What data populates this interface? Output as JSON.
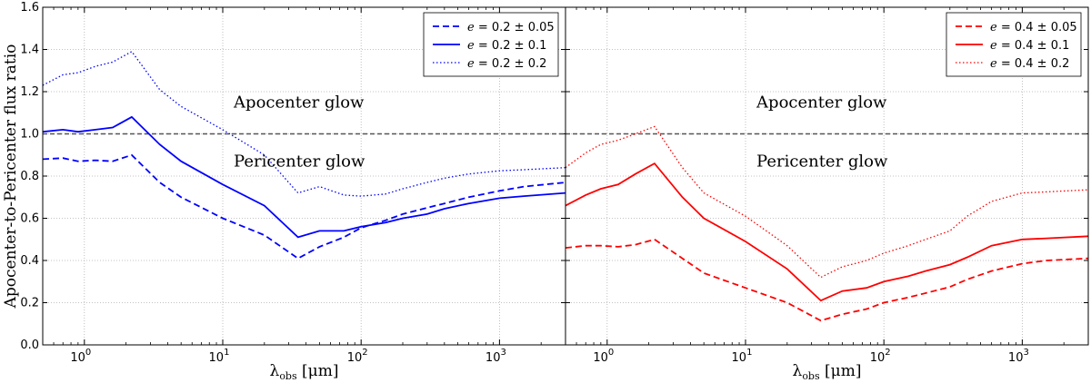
{
  "chart_data": [
    {
      "type": "line",
      "panel": "left",
      "xscale": "log",
      "xlim": [
        0.5,
        3000
      ],
      "ylim": [
        0.0,
        1.6
      ],
      "xlabel": "λobs [μm]",
      "ylabel": "Apocenter-to-Pericenter flux ratio",
      "yticks": [
        "0.0",
        "0.2",
        "0.4",
        "0.6",
        "0.8",
        "1.0",
        "1.2",
        "1.4",
        "1.6"
      ],
      "xticks": [
        {
          "base": "10",
          "exp": "0",
          "value": 1
        },
        {
          "base": "10",
          "exp": "1",
          "value": 10
        },
        {
          "base": "10",
          "exp": "2",
          "value": 100
        },
        {
          "base": "10",
          "exp": "3",
          "value": 1000
        }
      ],
      "grid": true,
      "reference_line": {
        "y": 1.0,
        "style": "dashed",
        "color": "#555555"
      },
      "annotations": [
        {
          "text": "Apocenter glow",
          "x": 12,
          "y": 1.15
        },
        {
          "text": "Pericenter glow",
          "x": 12,
          "y": 0.87
        }
      ],
      "legend_position": "top-right",
      "series": [
        {
          "name": "e = 0.2 ± 0.05",
          "label_italic": "e",
          "label_rest": " = 0.2 ± 0.05",
          "color": "#0000ff",
          "style": "dashed",
          "x": [
            0.5,
            0.7,
            0.9,
            1.2,
            1.6,
            2.2,
            3.5,
            5,
            10,
            20,
            35,
            50,
            75,
            100,
            150,
            200,
            300,
            400,
            600,
            1000,
            1500,
            3000
          ],
          "y": [
            0.88,
            0.885,
            0.87,
            0.875,
            0.87,
            0.9,
            0.77,
            0.7,
            0.6,
            0.52,
            0.41,
            0.465,
            0.51,
            0.555,
            0.59,
            0.62,
            0.65,
            0.67,
            0.7,
            0.73,
            0.75,
            0.77
          ]
        },
        {
          "name": "e = 0.2 ± 0.1",
          "label_italic": "e",
          "label_rest": " = 0.2 ± 0.1",
          "color": "#0000ff",
          "style": "solid",
          "x": [
            0.5,
            0.7,
            0.9,
            1.2,
            1.6,
            2.2,
            3.5,
            5,
            10,
            20,
            35,
            50,
            75,
            100,
            150,
            200,
            300,
            400,
            600,
            1000,
            1500,
            3000
          ],
          "y": [
            1.01,
            1.02,
            1.01,
            1.02,
            1.03,
            1.08,
            0.95,
            0.87,
            0.76,
            0.66,
            0.51,
            0.54,
            0.54,
            0.56,
            0.58,
            0.6,
            0.62,
            0.645,
            0.67,
            0.695,
            0.705,
            0.72
          ]
        },
        {
          "name": "e = 0.2 ± 0.2",
          "label_italic": "e",
          "label_rest": " = 0.2 ± 0.2",
          "color": "#0000ff",
          "style": "dotted",
          "x": [
            0.5,
            0.7,
            0.9,
            1.2,
            1.6,
            2.2,
            3.5,
            5,
            10,
            20,
            35,
            50,
            75,
            100,
            150,
            200,
            300,
            400,
            600,
            1000,
            1500,
            3000
          ],
          "y": [
            1.23,
            1.28,
            1.29,
            1.32,
            1.34,
            1.39,
            1.21,
            1.13,
            1.02,
            0.9,
            0.72,
            0.75,
            0.71,
            0.705,
            0.715,
            0.74,
            0.77,
            0.79,
            0.81,
            0.825,
            0.83,
            0.84
          ]
        }
      ]
    },
    {
      "type": "line",
      "panel": "right",
      "xscale": "log",
      "xlim": [
        0.5,
        3000
      ],
      "ylim": [
        0.0,
        1.6
      ],
      "xlabel": "λobs [μm]",
      "xticks": [
        {
          "base": "10",
          "exp": "0",
          "value": 1
        },
        {
          "base": "10",
          "exp": "1",
          "value": 10
        },
        {
          "base": "10",
          "exp": "2",
          "value": 100
        },
        {
          "base": "10",
          "exp": "3",
          "value": 1000
        }
      ],
      "grid": true,
      "reference_line": {
        "y": 1.0,
        "style": "dashed",
        "color": "#555555"
      },
      "annotations": [
        {
          "text": "Apocenter glow",
          "x": 12,
          "y": 1.15
        },
        {
          "text": "Pericenter glow",
          "x": 12,
          "y": 0.87
        }
      ],
      "legend_position": "top-right",
      "series": [
        {
          "name": "e = 0.4 ± 0.05",
          "label_italic": "e",
          "label_rest": " = 0.4 ± 0.05",
          "color": "#ff0000",
          "style": "dashed",
          "x": [
            0.5,
            0.7,
            0.9,
            1.2,
            1.6,
            2.2,
            3.5,
            5,
            10,
            20,
            35,
            50,
            75,
            100,
            150,
            200,
            300,
            400,
            600,
            1000,
            1500,
            3000
          ],
          "y": [
            0.46,
            0.47,
            0.47,
            0.465,
            0.475,
            0.5,
            0.41,
            0.34,
            0.27,
            0.2,
            0.115,
            0.145,
            0.17,
            0.2,
            0.225,
            0.245,
            0.275,
            0.31,
            0.35,
            0.385,
            0.4,
            0.41
          ]
        },
        {
          "name": "e = 0.4 ± 0.1",
          "label_italic": "e",
          "label_rest": " = 0.4 ± 0.1",
          "color": "#ff0000",
          "style": "solid",
          "x": [
            0.5,
            0.7,
            0.9,
            1.2,
            1.6,
            2.2,
            3.5,
            5,
            10,
            20,
            35,
            50,
            75,
            100,
            150,
            200,
            300,
            400,
            600,
            1000,
            1500,
            3000
          ],
          "y": [
            0.66,
            0.71,
            0.74,
            0.76,
            0.81,
            0.86,
            0.7,
            0.6,
            0.49,
            0.36,
            0.21,
            0.255,
            0.27,
            0.3,
            0.325,
            0.35,
            0.38,
            0.415,
            0.47,
            0.5,
            0.505,
            0.515
          ]
        },
        {
          "name": "e = 0.4 ± 0.2",
          "label_italic": "e",
          "label_rest": " = 0.4 ± 0.2",
          "color": "#ff0000",
          "style": "dotted",
          "x": [
            0.5,
            0.7,
            0.9,
            1.2,
            1.6,
            2.2,
            3.5,
            5,
            10,
            20,
            35,
            50,
            75,
            100,
            150,
            200,
            300,
            400,
            600,
            1000,
            1500,
            3000
          ],
          "y": [
            0.84,
            0.91,
            0.95,
            0.97,
            1.0,
            1.035,
            0.84,
            0.72,
            0.61,
            0.47,
            0.32,
            0.37,
            0.4,
            0.435,
            0.47,
            0.5,
            0.54,
            0.61,
            0.68,
            0.72,
            0.725,
            0.735
          ]
        }
      ]
    }
  ]
}
